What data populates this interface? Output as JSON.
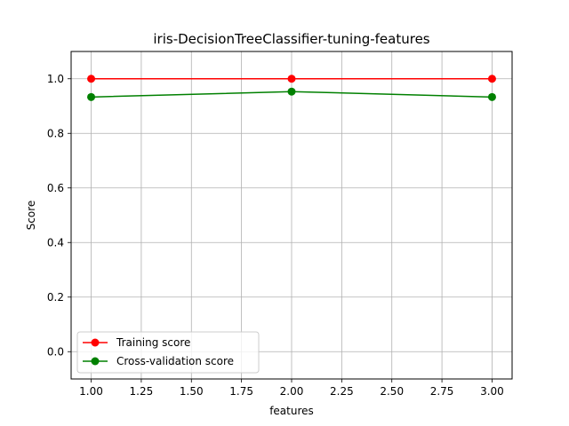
{
  "chart_data": {
    "type": "line",
    "title": "iris-DecisionTreeClassifier-tuning-features",
    "xlabel": "features",
    "ylabel": "Score",
    "xlim": [
      0.9,
      3.1
    ],
    "ylim": [
      -0.1,
      1.1
    ],
    "x_ticks": [
      "1.00",
      "1.25",
      "1.50",
      "1.75",
      "2.00",
      "2.25",
      "2.50",
      "2.75",
      "3.00"
    ],
    "y_ticks": [
      "0.0",
      "0.2",
      "0.4",
      "0.6",
      "0.8",
      "1.0"
    ],
    "x": [
      1,
      2,
      3
    ],
    "series": [
      {
        "name": "Training score",
        "values": [
          1.0,
          1.0,
          1.0
        ],
        "color": "#ff0000",
        "marker": "circle"
      },
      {
        "name": "Cross-validation score",
        "values": [
          0.933,
          0.953,
          0.933
        ],
        "color": "#008000",
        "marker": "circle"
      }
    ],
    "grid": true,
    "legend_position": "lower-left"
  }
}
